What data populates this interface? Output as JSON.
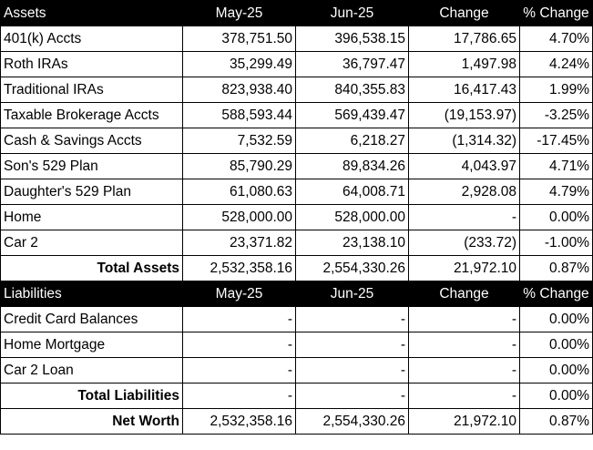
{
  "assets": {
    "header": [
      "Assets",
      "May-25",
      "Jun-25",
      "Change",
      "% Change"
    ],
    "rows": [
      [
        "401(k) Accts",
        "378,751.50",
        "396,538.15",
        "17,786.65",
        "4.70%"
      ],
      [
        "Roth IRAs",
        "35,299.49",
        "36,797.47",
        "1,497.98",
        "4.24%"
      ],
      [
        "Traditional IRAs",
        "823,938.40",
        "840,355.83",
        "16,417.43",
        "1.99%"
      ],
      [
        "Taxable Brokerage Accts",
        "588,593.44",
        "569,439.47",
        "(19,153.97)",
        "-3.25%"
      ],
      [
        "Cash & Savings Accts",
        "7,532.59",
        "6,218.27",
        "(1,314.32)",
        "-17.45%"
      ],
      [
        "Son's 529 Plan",
        "85,790.29",
        "89,834.26",
        "4,043.97",
        "4.71%"
      ],
      [
        "Daughter's 529 Plan",
        "61,080.63",
        "64,008.71",
        "2,928.08",
        "4.79%"
      ],
      [
        "Home",
        "528,000.00",
        "528,000.00",
        "-",
        "0.00%"
      ],
      [
        "Car 2",
        "23,371.82",
        "23,138.10",
        "(233.72)",
        "-1.00%"
      ]
    ],
    "total": [
      "Total Assets",
      "2,532,358.16",
      "2,554,330.26",
      "21,972.10",
      "0.87%"
    ]
  },
  "liabilities": {
    "header": [
      "Liabilities",
      "May-25",
      "Jun-25",
      "Change",
      "% Change"
    ],
    "rows": [
      [
        "Credit Card Balances",
        "-",
        "-",
        "-",
        "0.00%"
      ],
      [
        "Home Mortgage",
        "-",
        "-",
        "-",
        "0.00%"
      ],
      [
        "Car 2 Loan",
        "-",
        "-",
        "-",
        "0.00%"
      ]
    ],
    "total": [
      "Total Liabilities",
      "-",
      "-",
      "-",
      "0.00%"
    ]
  },
  "net_worth": [
    "Net Worth",
    "2,532,358.16",
    "2,554,330.26",
    "21,972.10",
    "0.87%"
  ],
  "colors": {
    "header_bg": "#000000",
    "header_text": "#ffffff",
    "grid": "#000000"
  }
}
